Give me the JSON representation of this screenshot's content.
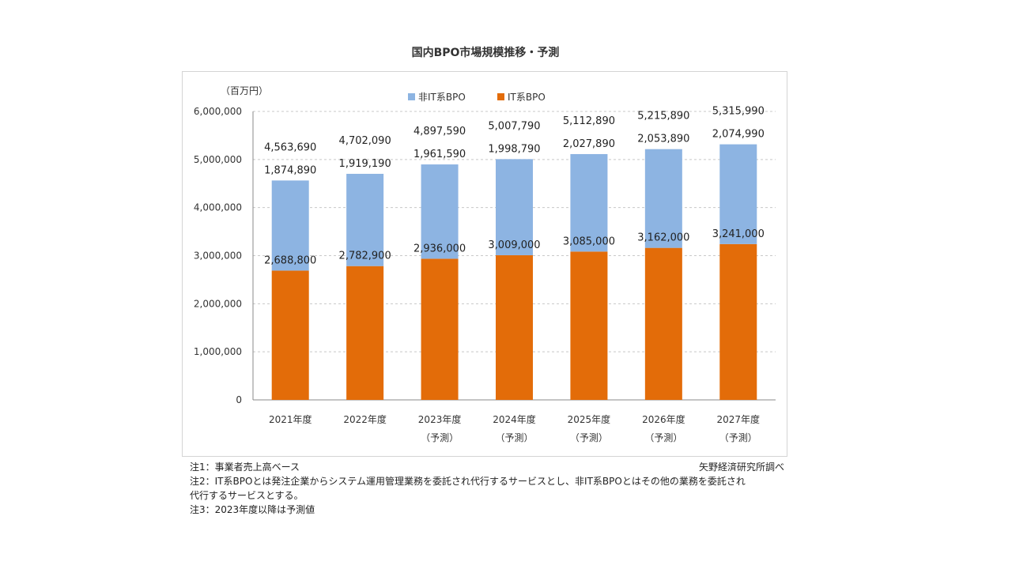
{
  "chart_data": {
    "type": "bar",
    "stacked": true,
    "title": "国内BPO市場規模推移・予測",
    "ylabel": "（百万円）",
    "ylim": [
      0,
      6000000
    ],
    "yticks": [
      "0",
      "1,000,000",
      "2,000,000",
      "3,000,000",
      "4,000,000",
      "5,000,000",
      "6,000,000"
    ],
    "grid": true,
    "legend_position": "top",
    "categories": [
      {
        "line1": "2021年度",
        "line2": ""
      },
      {
        "line1": "2022年度",
        "line2": ""
      },
      {
        "line1": "2023年度",
        "line2": "（予測）"
      },
      {
        "line1": "2024年度",
        "line2": "（予測）"
      },
      {
        "line1": "2025年度",
        "line2": "（予測）"
      },
      {
        "line1": "2026年度",
        "line2": "（予測）"
      },
      {
        "line1": "2027年度",
        "line2": "（予測）"
      }
    ],
    "series": [
      {
        "name": "IT系BPO",
        "color": "#e36c09",
        "values": [
          2688800,
          2782900,
          2936000,
          3009000,
          3085000,
          3162000,
          3241000
        ],
        "labels": [
          "2,688,800",
          "2,782,900",
          "2,936,000",
          "3,009,000",
          "3,085,000",
          "3,162,000",
          "3,241,000"
        ]
      },
      {
        "name": "非IT系BPO",
        "color": "#8db4e2",
        "values": [
          1874890,
          1919190,
          1961590,
          1998790,
          2027890,
          2053890,
          2074990
        ],
        "labels": [
          "1,874,890",
          "1,919,190",
          "1,961,590",
          "1,998,790",
          "2,027,890",
          "2,053,890",
          "2,074,990"
        ]
      }
    ],
    "totals": [
      4563690,
      4702090,
      4897590,
      5007790,
      5112890,
      5215890,
      5315990
    ],
    "total_labels": [
      "4,563,690",
      "4,702,090",
      "4,897,590",
      "5,007,790",
      "5,112,890",
      "5,215,890",
      "5,315,990"
    ]
  },
  "notes": {
    "note1": "注1：事業者売上高ベース",
    "note2a": "注2：IT系BPOとは発注企業からシステム運用管理業務を委託され代行するサービスとし、非IT系BPOとはその他の業務を委託され",
    "note2b": "代行するサービスとする。",
    "note3": "注3：2023年度以降は予測値",
    "source": "矢野経済研究所調べ"
  }
}
